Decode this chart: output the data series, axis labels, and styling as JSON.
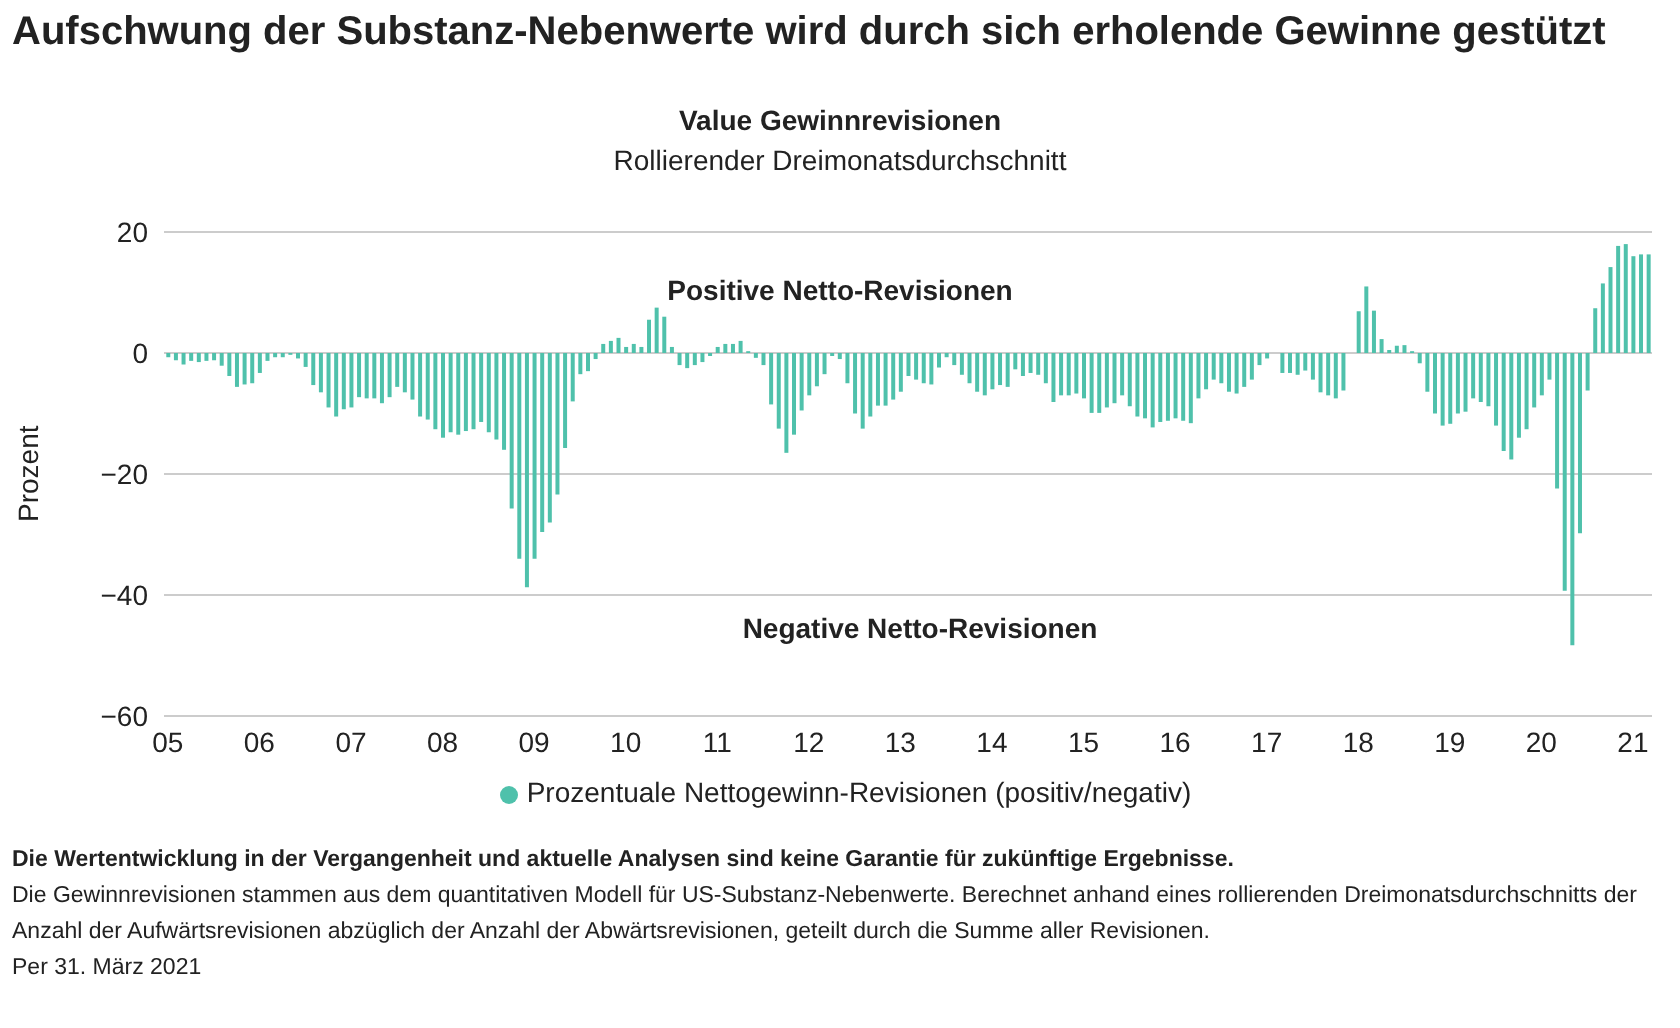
{
  "chart_data": {
    "type": "bar",
    "title": "Aufschwung der Substanz-Nebenwerte wird durch sich erholende Gewinne gestützt",
    "subtitle": "Value Gewinnrevisionen",
    "ylabel": "Prozent",
    "annotations": [
      "Rollierender Dreimonatsdurchschnitt",
      "Positive Netto-Revisionen",
      "Negative Netto-Revisionen",
      "Die Wertentwicklung in der Vergangenheit und aktuelle Analysen sind keine Garantie für zukünftige Ergebnisse.",
      "Die Gewinnrevisionen stammen aus dem quantitativen Modell für US-Substanz-Nebenwerte. Berechnet anhand eines rollierenden Dreimonatsdurchschnitts der Anzahl der Aufwärtsrevisionen abzüglich der Anzahl der Abwärtsrevisionen, geteilt durch die Summe aller Revisionen.",
      "Per 31. März 2021"
    ],
    "categories": [
      "05",
      null,
      null,
      null,
      null,
      null,
      null,
      null,
      null,
      null,
      null,
      null,
      "06",
      null,
      null,
      null,
      null,
      null,
      null,
      null,
      null,
      null,
      null,
      null,
      "07",
      null,
      null,
      null,
      null,
      null,
      null,
      null,
      null,
      null,
      null,
      null,
      "08",
      null,
      null,
      null,
      null,
      null,
      null,
      null,
      null,
      null,
      null,
      null,
      "09",
      null,
      null,
      null,
      null,
      null,
      null,
      null,
      null,
      null,
      null,
      null,
      "10",
      null,
      null,
      null,
      null,
      null,
      null,
      null,
      null,
      null,
      null,
      null,
      "11",
      null,
      null,
      null,
      null,
      null,
      null,
      null,
      null,
      null,
      null,
      null,
      "12",
      null,
      null,
      null,
      null,
      null,
      null,
      null,
      null,
      null,
      null,
      null,
      "13",
      null,
      null,
      null,
      null,
      null,
      null,
      null,
      null,
      null,
      null,
      null,
      "14",
      null,
      null,
      null,
      null,
      null,
      null,
      null,
      null,
      null,
      null,
      null,
      "15",
      null,
      null,
      null,
      null,
      null,
      null,
      null,
      null,
      null,
      null,
      null,
      "16",
      null,
      null,
      null,
      null,
      null,
      null,
      null,
      null,
      null,
      null,
      null,
      "17",
      null,
      null,
      null,
      null,
      null,
      null,
      null,
      null,
      null,
      null,
      null,
      "18",
      null,
      null,
      null,
      null,
      null,
      null,
      null,
      null,
      null,
      null,
      null,
      "19",
      null,
      null,
      null,
      null,
      null,
      null,
      null,
      null,
      null,
      null,
      null,
      "20",
      null,
      null,
      null,
      null,
      null,
      null,
      null,
      null,
      null,
      null,
      null,
      "21",
      null,
      null
    ],
    "series": [
      {
        "name": "Prozentuale Nettogewinn-Revisionen (positiv/negativ)",
        "color": "#4fc1ab",
        "values": [
          -0.7,
          -1.2,
          -1.9,
          -1.3,
          -1.5,
          -1.3,
          -1.2,
          -2.1,
          -3.8,
          -5.6,
          -5.2,
          -5,
          -3.3,
          -1.3,
          -0.7,
          -0.7,
          -0.3,
          -0.9,
          -2.3,
          -5.3,
          -6.5,
          -9,
          -10.5,
          -9.3,
          -9,
          -7.3,
          -7.5,
          -7.5,
          -8.3,
          -7.3,
          -5.6,
          -6.5,
          -7.7,
          -10.5,
          -11,
          -12.6,
          -14,
          -13.1,
          -13.5,
          -12.9,
          -12.6,
          -11.4,
          -13.1,
          -14.3,
          -16,
          -25.7,
          -34,
          -38.7,
          -34,
          -29.6,
          -28,
          -23.4,
          -15.7,
          -8,
          -3.5,
          -3,
          -1,
          1.5,
          2,
          2.5,
          1,
          1.5,
          1,
          5.5,
          7.5,
          6,
          1,
          -2,
          -2.5,
          -2,
          -1.5,
          -0.5,
          1,
          1.5,
          1.5,
          2,
          0.3,
          -0.8,
          -2,
          -8.5,
          -12.5,
          -16.5,
          -13.5,
          -9.5,
          -7,
          -5.5,
          -3.5,
          -0.5,
          -1,
          -5,
          -10,
          -12.5,
          -10.5,
          -8.7,
          -8.7,
          -7.7,
          -6.4,
          -3.8,
          -4.4,
          -5,
          -5.2,
          -2.4,
          -0.7,
          -2,
          -3.6,
          -5,
          -6.4,
          -7,
          -6,
          -5.3,
          -5.6,
          -2.7,
          -3.8,
          -3.3,
          -3.6,
          -5,
          -8.1,
          -7,
          -7,
          -6.7,
          -7.5,
          -9.9,
          -9.9,
          -9,
          -8.3,
          -7,
          -8.8,
          -10.5,
          -10.8,
          -12.3,
          -11.4,
          -11.2,
          -10.8,
          -11.2,
          -11.6,
          -7.5,
          -6,
          -4.4,
          -5,
          -6.4,
          -6.7,
          -5.6,
          -4.4,
          -2,
          -0.9,
          0,
          -3.3,
          -3.3,
          -3.6,
          -2.9,
          -4.4,
          -6.5,
          -7,
          -7.5,
          -6.2,
          0,
          6.9,
          11,
          7,
          2.3,
          0.5,
          1.2,
          1.3,
          0.3,
          -1.7,
          -6.4,
          -10,
          -12,
          -11.7,
          -10,
          -9.7,
          -7.5,
          -8.1,
          -8.8,
          -12,
          -16.2,
          -17.6,
          -14,
          -12.6,
          -9,
          -7,
          -4.4,
          -22.4,
          -39.3,
          -48.3,
          -29.8,
          -6.2,
          7.4,
          11.5,
          14.2,
          17.7,
          18,
          16,
          16.3,
          16.3
        ]
      }
    ],
    "ylim": [
      -60,
      20
    ],
    "yticks": [
      {
        "value": -60,
        "label": "−60"
      },
      {
        "value": -40,
        "label": "−40"
      },
      {
        "value": -20,
        "label": "−20"
      },
      0,
      20
    ],
    "grid": "y",
    "legend": "bottom"
  }
}
